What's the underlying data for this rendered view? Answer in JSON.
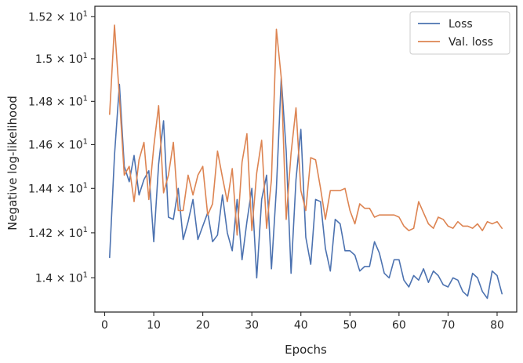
{
  "chart_data": {
    "type": "line",
    "xlabel": "Epochs",
    "ylabel": "Negative log-likelihood",
    "xlim": [
      -2,
      84
    ],
    "ylim": [
      13.85,
      15.25
    ],
    "yscale": "log",
    "grid": false,
    "legend_position": "top-right",
    "x_ticks": [
      {
        "value": 0,
        "label": "0"
      },
      {
        "value": 10,
        "label": "10"
      },
      {
        "value": 20,
        "label": "20"
      },
      {
        "value": 30,
        "label": "30"
      },
      {
        "value": 40,
        "label": "40"
      },
      {
        "value": 50,
        "label": "50"
      },
      {
        "value": 60,
        "label": "60"
      },
      {
        "value": 70,
        "label": "70"
      },
      {
        "value": 80,
        "label": "80"
      }
    ],
    "y_ticks": [
      {
        "value": 14.0,
        "mantissa": "1.4",
        "base": "10",
        "exp": "1"
      },
      {
        "value": 14.2,
        "mantissa": "1.42",
        "base": "10",
        "exp": "1"
      },
      {
        "value": 14.4,
        "mantissa": "1.44",
        "base": "10",
        "exp": "1"
      },
      {
        "value": 14.6,
        "mantissa": "1.46",
        "base": "10",
        "exp": "1"
      },
      {
        "value": 14.8,
        "mantissa": "1.48",
        "base": "10",
        "exp": "1"
      },
      {
        "value": 15.0,
        "mantissa": "1.5",
        "base": "10",
        "exp": "1"
      },
      {
        "value": 15.2,
        "mantissa": "1.52",
        "base": "10",
        "exp": "1"
      }
    ],
    "series": [
      {
        "name": "Loss",
        "color": "#4c72b0",
        "x": [
          1,
          2,
          3,
          4,
          5,
          6,
          7,
          8,
          9,
          10,
          11,
          12,
          13,
          14,
          15,
          16,
          17,
          18,
          19,
          20,
          21,
          22,
          23,
          24,
          25,
          26,
          27,
          28,
          29,
          30,
          31,
          32,
          33,
          34,
          35,
          36,
          37,
          38,
          39,
          40,
          41,
          42,
          43,
          44,
          45,
          46,
          47,
          48,
          49,
          50,
          51,
          52,
          53,
          54,
          55,
          56,
          57,
          58,
          59,
          60,
          61,
          62,
          63,
          64,
          65,
          66,
          67,
          68,
          69,
          70,
          71,
          72,
          73,
          74,
          75,
          76,
          77,
          78,
          79,
          80,
          81
        ],
        "values": [
          14.09,
          14.55,
          14.88,
          14.5,
          14.43,
          14.55,
          14.37,
          14.44,
          14.48,
          14.16,
          14.51,
          14.71,
          14.27,
          14.26,
          14.4,
          14.17,
          14.25,
          14.35,
          14.17,
          14.23,
          14.29,
          14.16,
          14.19,
          14.37,
          14.2,
          14.12,
          14.35,
          14.08,
          14.25,
          14.4,
          14.0,
          14.35,
          14.46,
          14.04,
          14.4,
          14.91,
          14.57,
          14.02,
          14.44,
          14.67,
          14.18,
          14.06,
          14.35,
          14.34,
          14.13,
          14.03,
          14.26,
          14.24,
          14.12,
          14.12,
          14.1,
          14.03,
          14.05,
          14.05,
          14.16,
          14.11,
          14.02,
          14.0,
          14.08,
          14.08,
          13.99,
          13.96,
          14.01,
          13.99,
          14.04,
          13.98,
          14.03,
          14.01,
          13.97,
          13.96,
          14.0,
          13.99,
          13.94,
          13.92,
          14.02,
          14.0,
          13.94,
          13.91,
          14.03,
          14.01,
          13.93
        ]
      },
      {
        "name": "Val. loss",
        "color": "#dd8452",
        "x": [
          1,
          2,
          3,
          4,
          5,
          6,
          7,
          8,
          9,
          10,
          11,
          12,
          13,
          14,
          15,
          16,
          17,
          18,
          19,
          20,
          21,
          22,
          23,
          24,
          25,
          26,
          27,
          28,
          29,
          30,
          31,
          32,
          33,
          34,
          35,
          36,
          37,
          38,
          39,
          40,
          41,
          42,
          43,
          44,
          45,
          46,
          47,
          48,
          49,
          50,
          51,
          52,
          53,
          54,
          55,
          56,
          57,
          58,
          59,
          60,
          61,
          62,
          63,
          64,
          65,
          66,
          67,
          68,
          69,
          70,
          71,
          72,
          73,
          74,
          75,
          76,
          77,
          78,
          79,
          80,
          81
        ],
        "values": [
          14.74,
          15.16,
          14.82,
          14.46,
          14.5,
          14.34,
          14.53,
          14.61,
          14.35,
          14.59,
          14.78,
          14.38,
          14.46,
          14.61,
          14.3,
          14.3,
          14.46,
          14.37,
          14.46,
          14.5,
          14.28,
          14.33,
          14.57,
          14.45,
          14.34,
          14.49,
          14.19,
          14.52,
          14.65,
          14.21,
          14.47,
          14.62,
          14.22,
          14.44,
          15.14,
          14.91,
          14.26,
          14.56,
          14.77,
          14.39,
          14.3,
          14.54,
          14.53,
          14.4,
          14.26,
          14.39,
          14.39,
          14.39,
          14.4,
          14.3,
          14.24,
          14.33,
          14.31,
          14.31,
          14.27,
          14.28,
          14.28,
          14.28,
          14.28,
          14.27,
          14.23,
          14.21,
          14.22,
          14.34,
          14.29,
          14.24,
          14.22,
          14.27,
          14.26,
          14.23,
          14.22,
          14.25,
          14.23,
          14.23,
          14.22,
          14.24,
          14.21,
          14.25,
          14.24,
          14.25,
          14.22
        ]
      }
    ]
  }
}
